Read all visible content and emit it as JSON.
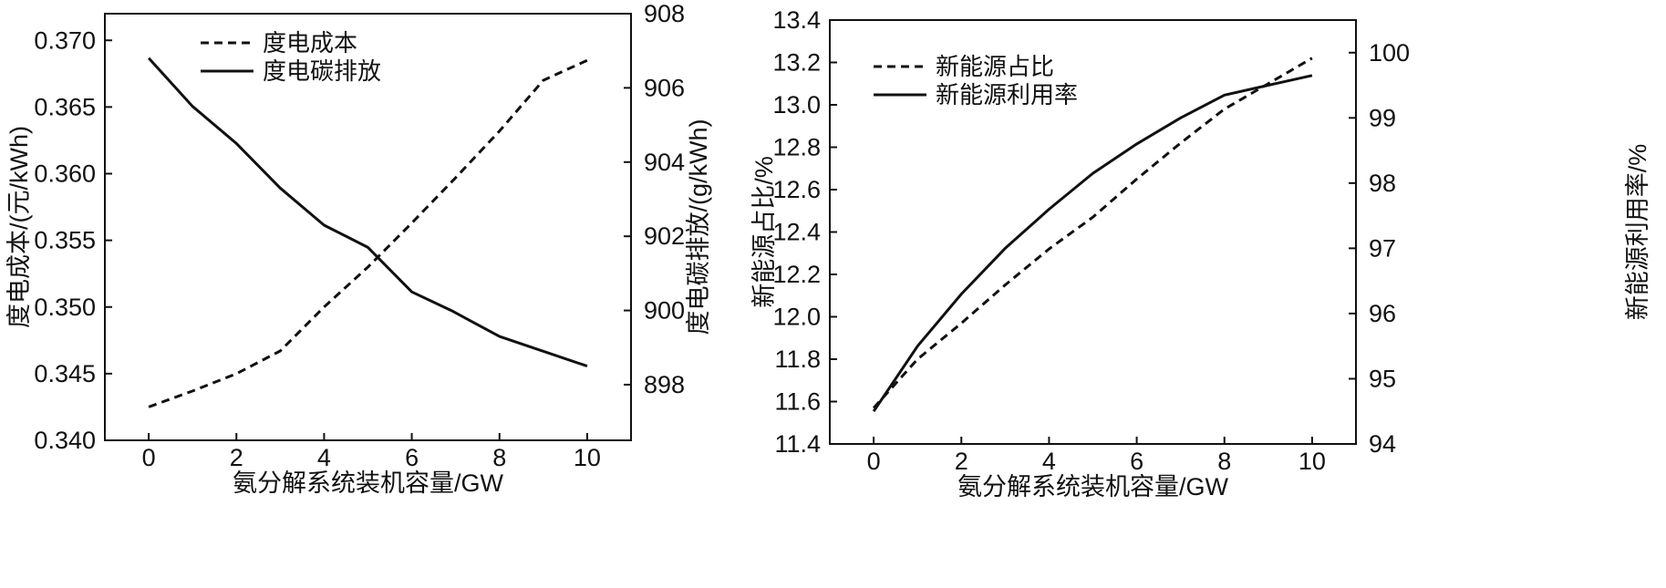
{
  "chart_data": [
    {
      "type": "line",
      "xlabel": "氨分解系统装机容量/GW",
      "ylabel_left": "度电成本/(元/kWh)",
      "ylabel_right": "度电碳排放/(g/kWh)",
      "xlim": [
        -1,
        11
      ],
      "xticks": [
        "0",
        "2",
        "4",
        "6",
        "8",
        "10"
      ],
      "ylim_left": [
        0.34,
        0.372
      ],
      "yticks_left": [
        "0.340",
        "0.345",
        "0.350",
        "0.355",
        "0.360",
        "0.365",
        "0.370"
      ],
      "ylim_right": [
        896.5,
        908
      ],
      "yticks_right": [
        "898",
        "900",
        "902",
        "904",
        "906",
        "908"
      ],
      "legend_position": "top-left",
      "series": [
        {
          "name": "度电成本",
          "axis": "left",
          "style": "dashed",
          "x": [
            0,
            1,
            2,
            3,
            4,
            5,
            6,
            7,
            8,
            9,
            10
          ],
          "y": [
            0.3425,
            0.3437,
            0.345,
            0.3467,
            0.35,
            0.353,
            0.3563,
            0.3597,
            0.3632,
            0.367,
            0.3685
          ]
        },
        {
          "name": "度电碳排放",
          "axis": "right",
          "style": "solid",
          "x": [
            0,
            1,
            2,
            3,
            4,
            5,
            6,
            6.9,
            8,
            9,
            10
          ],
          "y": [
            906.8,
            905.5,
            904.5,
            903.3,
            902.3,
            901.7,
            900.5,
            900.0,
            899.3,
            898.9,
            898.5
          ]
        }
      ]
    },
    {
      "type": "line",
      "xlabel": "氨分解系统装机容量/GW",
      "ylabel_left": "新能源占比/%",
      "ylabel_right": "新能源利用率/%",
      "xlim": [
        -1,
        11
      ],
      "xticks": [
        "0",
        "2",
        "4",
        "6",
        "8",
        "10"
      ],
      "ylim_left": [
        11.4,
        13.4
      ],
      "yticks_left": [
        "11.4",
        "11.6",
        "11.8",
        "12.0",
        "12.2",
        "12.4",
        "12.6",
        "12.8",
        "13.0",
        "13.2",
        "13.4"
      ],
      "ylim_right": [
        94,
        100.5
      ],
      "yticks_right": [
        "94",
        "95",
        "96",
        "97",
        "98",
        "99",
        "100"
      ],
      "legend_position": "top-left",
      "series": [
        {
          "name": "新能源占比",
          "axis": "left",
          "style": "dashed",
          "x": [
            0,
            1,
            2,
            3,
            4,
            5,
            6,
            7,
            8,
            9,
            10
          ],
          "y": [
            11.57,
            11.8,
            11.97,
            12.15,
            12.32,
            12.47,
            12.65,
            12.82,
            12.98,
            13.1,
            13.22
          ]
        },
        {
          "name": "新能源利用率",
          "axis": "right",
          "style": "solid",
          "x": [
            0,
            1,
            2,
            3,
            4,
            5,
            6,
            7,
            8,
            9,
            10
          ],
          "y": [
            94.5,
            95.5,
            96.3,
            97.0,
            97.6,
            98.15,
            98.6,
            99.0,
            99.35,
            99.5,
            99.65
          ]
        }
      ]
    }
  ]
}
